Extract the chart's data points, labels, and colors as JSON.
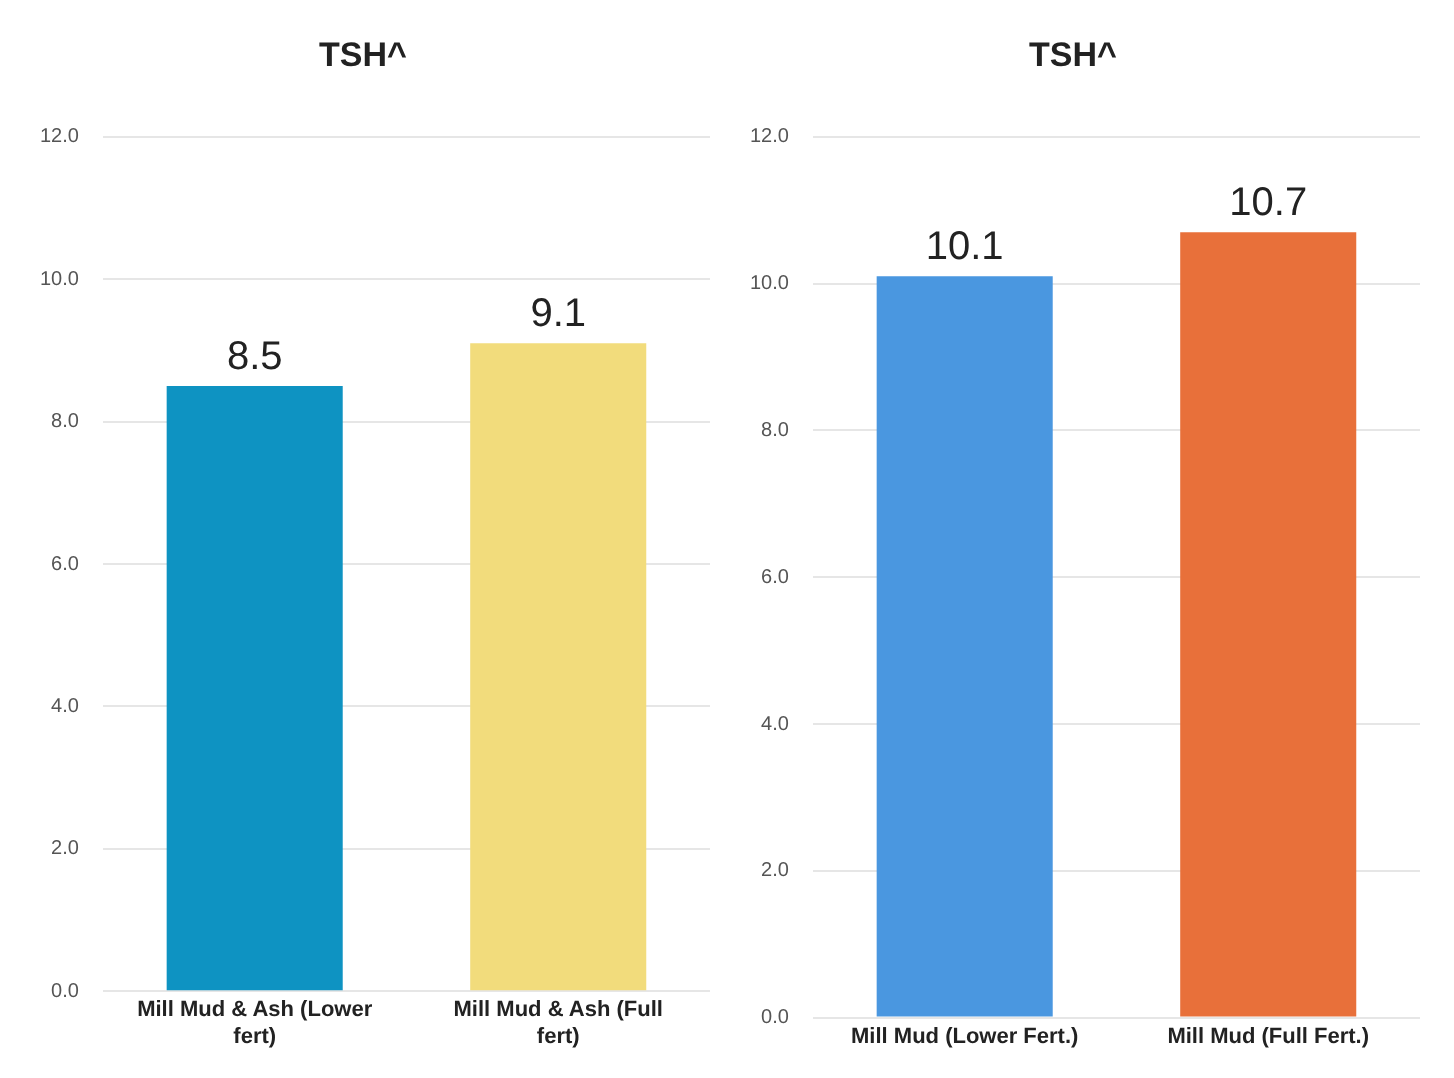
{
  "chart_data": [
    {
      "type": "bar",
      "title": "TSH^",
      "categories": [
        "Mill Mud & Ash (Lower fert)",
        "Mill Mud & Ash (Full fert)"
      ],
      "values": [
        8.5,
        9.1
      ],
      "colors": [
        "#0e93c2",
        "#f2dc7c"
      ],
      "ylim": [
        0,
        12
      ],
      "yticks": [
        {
          "value": 0,
          "label": "0.0"
        },
        {
          "value": 2,
          "label": "2.0"
        },
        {
          "value": 4,
          "label": "4.0"
        },
        {
          "value": 6,
          "label": "6.0"
        },
        {
          "value": 8,
          "label": "8.0"
        },
        {
          "value": 10,
          "label": "10.0"
        },
        {
          "value": 12,
          "label": "12.0"
        }
      ],
      "grid": "y",
      "data_labels": true
    },
    {
      "type": "bar",
      "title": "TSH^",
      "categories": [
        "Mill Mud (Lower Fert.)",
        "Mill Mud (Full Fert.)"
      ],
      "values": [
        10.1,
        10.7
      ],
      "colors": [
        "#4a97e0",
        "#e8703a"
      ],
      "ylim": [
        0,
        12
      ],
      "yticks": [
        {
          "value": 0,
          "label": "0.0"
        },
        {
          "value": 2,
          "label": "2.0"
        },
        {
          "value": 4,
          "label": "4.0"
        },
        {
          "value": 6,
          "label": "6.0"
        },
        {
          "value": 8,
          "label": "8.0"
        },
        {
          "value": 10,
          "label": "10.0"
        },
        {
          "value": 12,
          "label": "12.0"
        }
      ],
      "grid": "y",
      "data_labels": true
    }
  ]
}
